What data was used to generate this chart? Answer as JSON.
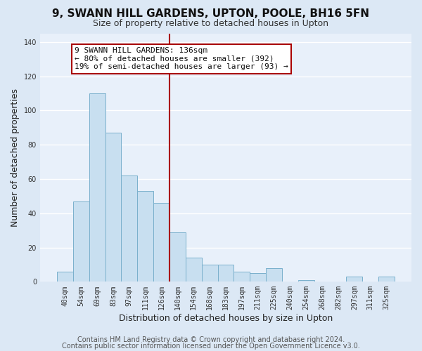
{
  "title_line1": "9, SWANN HILL GARDENS, UPTON, POOLE, BH16 5FN",
  "title_line2": "Size of property relative to detached houses in Upton",
  "xlabel": "Distribution of detached houses by size in Upton",
  "ylabel": "Number of detached properties",
  "bar_labels": [
    "40sqm",
    "54sqm",
    "69sqm",
    "83sqm",
    "97sqm",
    "111sqm",
    "126sqm",
    "140sqm",
    "154sqm",
    "168sqm",
    "183sqm",
    "197sqm",
    "211sqm",
    "225sqm",
    "240sqm",
    "254sqm",
    "268sqm",
    "282sqm",
    "297sqm",
    "311sqm",
    "325sqm"
  ],
  "bar_values": [
    6,
    47,
    110,
    87,
    62,
    53,
    46,
    29,
    14,
    10,
    10,
    6,
    5,
    8,
    0,
    1,
    0,
    0,
    3,
    0,
    3
  ],
  "bar_color": "#c8dff0",
  "bar_edge_color": "#7ab0cc",
  "highlight_bar_index": 7,
  "highlight_line_color": "#aa0000",
  "vline_x_index": 7,
  "ylim": [
    0,
    145
  ],
  "yticks": [
    0,
    20,
    40,
    60,
    80,
    100,
    120,
    140
  ],
  "annotation_box_text_line1": "9 SWANN HILL GARDENS: 136sqm",
  "annotation_box_text_line2": "← 80% of detached houses are smaller (392)",
  "annotation_box_text_line3": "19% of semi-detached houses are larger (93) →",
  "annotation_box_facecolor": "#ffffff",
  "annotation_box_edgecolor": "#aa0000",
  "footer_line1": "Contains HM Land Registry data © Crown copyright and database right 2024.",
  "footer_line2": "Contains public sector information licensed under the Open Government Licence v3.0.",
  "background_color": "#dce8f5",
  "plot_bg_color": "#e8f0fa",
  "grid_color": "#ffffff",
  "title_fontsize": 11,
  "subtitle_fontsize": 9,
  "axis_label_fontsize": 9,
  "tick_fontsize": 7,
  "annotation_fontsize": 8,
  "footer_fontsize": 7
}
